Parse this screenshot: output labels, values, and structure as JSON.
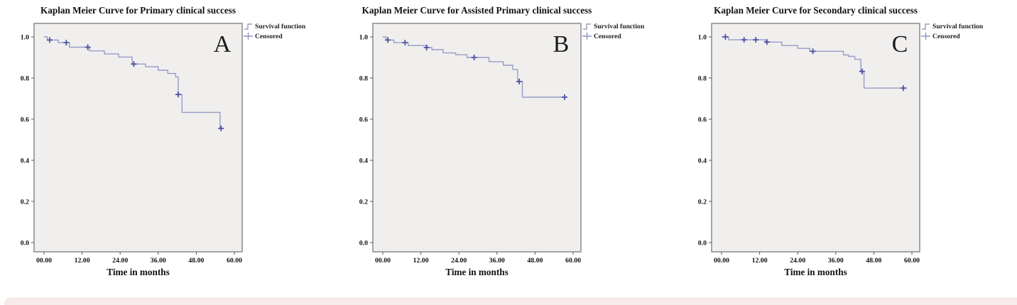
{
  "page": {
    "background": "#ffffff",
    "footer_strip_color": "#f6ebe8"
  },
  "layout_colors": {
    "plot_bg": "#f0efee",
    "frame": "#919191",
    "line": "#969cc7",
    "censor": "#4d53a0",
    "text": "#111111",
    "legend_step_glyph": "#9aa0bf",
    "legend_censor_glyph": "#8e94c0",
    "letter": "#1c1c1c"
  },
  "legend": {
    "survival_label": "Survival function",
    "censored_label": "Censored"
  },
  "axis": {
    "x_title": "Time in months",
    "x_tick_labels": [
      "00.00",
      "12.00",
      "24.00",
      "36.00",
      "48.00",
      "60.00"
    ],
    "x_tick_values": [
      0,
      12,
      24,
      36,
      48,
      60
    ],
    "y_tick_labels": [
      "1.0",
      "0.8",
      "0.6",
      "0.4",
      "0.2",
      "0.0"
    ],
    "y_tick_values": [
      1.0,
      0.8,
      0.6,
      0.4,
      0.2,
      0.0
    ]
  },
  "chart_data": [
    {
      "type": "line",
      "subtype": "kaplan_meier_step",
      "letter": "A",
      "title": "Kaplan Meier Curve for Primary clinical success",
      "xlabel": "Time in months",
      "ylabel": "",
      "xlim": [
        0,
        63
      ],
      "ylim": [
        0,
        1.0
      ],
      "grid": false,
      "legend_position": "top-right-outside",
      "legend": [
        "Survival function",
        "Censored"
      ],
      "series": [
        {
          "name": "Survival function",
          "steps": [
            [
              0,
              1.0
            ],
            [
              1,
              0.985
            ],
            [
              4.5,
              0.972
            ],
            [
              8,
              0.95
            ],
            [
              14.3,
              0.932
            ],
            [
              19,
              0.917
            ],
            [
              23.5,
              0.902
            ],
            [
              27.8,
              0.868
            ],
            [
              32,
              0.855
            ],
            [
              36,
              0.838
            ],
            [
              39,
              0.822
            ],
            [
              41.5,
              0.806
            ],
            [
              42.3,
              0.72
            ],
            [
              43.5,
              0.633
            ],
            [
              55.5,
              0.555
            ]
          ],
          "end_t": 56.5
        },
        {
          "name": "Censored",
          "points": [
            [
              1.8,
              0.985
            ],
            [
              7,
              0.972
            ],
            [
              13.8,
              0.95
            ],
            [
              28.3,
              0.868
            ],
            [
              42.3,
              0.72
            ],
            [
              55.8,
              0.555
            ]
          ]
        }
      ]
    },
    {
      "type": "line",
      "subtype": "kaplan_meier_step",
      "letter": "B",
      "title": "Kaplan Meier Curve for Assisted Primary clinical success",
      "xlabel": "Time in months",
      "ylabel": "",
      "xlim": [
        0,
        63
      ],
      "ylim": [
        0,
        1.0
      ],
      "grid": false,
      "legend_position": "top-right-outside",
      "legend": [
        "Survival function",
        "Censored"
      ],
      "series": [
        {
          "name": "Survival function",
          "steps": [
            [
              0,
              1.0
            ],
            [
              1,
              0.985
            ],
            [
              3.5,
              0.972
            ],
            [
              8,
              0.958
            ],
            [
              14,
              0.948
            ],
            [
              15.5,
              0.938
            ],
            [
              19,
              0.922
            ],
            [
              23,
              0.913
            ],
            [
              26.5,
              0.9
            ],
            [
              33.5,
              0.879
            ],
            [
              38,
              0.862
            ],
            [
              41,
              0.841
            ],
            [
              42.5,
              0.783
            ],
            [
              44,
              0.707
            ]
          ],
          "end_t": 58
        },
        {
          "name": "Censored",
          "points": [
            [
              1.6,
              0.985
            ],
            [
              7,
              0.972
            ],
            [
              13.8,
              0.948
            ],
            [
              28.8,
              0.9
            ],
            [
              43,
              0.783
            ],
            [
              57.3,
              0.707
            ]
          ]
        }
      ]
    },
    {
      "type": "line",
      "subtype": "kaplan_meier_step",
      "letter": "C",
      "title": "Kaplan Meier Curve for Secondary clinical success",
      "xlabel": "Time in months",
      "ylabel": "",
      "xlim": [
        0,
        63
      ],
      "ylim": [
        0,
        1.0
      ],
      "grid": false,
      "legend_position": "top-right-outside",
      "legend": [
        "Survival function",
        "Censored"
      ],
      "series": [
        {
          "name": "Survival function",
          "steps": [
            [
              0,
              1.0
            ],
            [
              2.2,
              0.986
            ],
            [
              13.9,
              0.975
            ],
            [
              19,
              0.958
            ],
            [
              24,
              0.944
            ],
            [
              27.8,
              0.93
            ],
            [
              38.4,
              0.912
            ],
            [
              40,
              0.905
            ],
            [
              42,
              0.891
            ],
            [
              43.9,
              0.832
            ],
            [
              44.9,
              0.751
            ]
          ],
          "end_t": 58.5
        },
        {
          "name": "Censored",
          "points": [
            [
              1.2,
              1.0
            ],
            [
              7.1,
              0.986
            ],
            [
              10.8,
              0.986
            ],
            [
              14.3,
              0.975
            ],
            [
              28.8,
              0.93
            ],
            [
              44.3,
              0.832
            ],
            [
              57.3,
              0.751
            ]
          ]
        }
      ]
    }
  ]
}
